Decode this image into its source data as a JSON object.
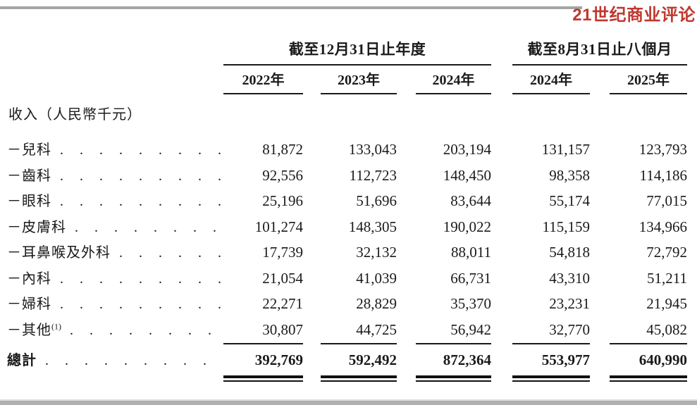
{
  "brand": {
    "logo_text": "21世纪商业评论",
    "logo_color": "#bf382f"
  },
  "table": {
    "columns": {
      "group1": {
        "title": "截至12月31日止年度",
        "years": [
          "2022年",
          "2023年",
          "2024年"
        ]
      },
      "group2": {
        "title": "截至8月31日止八個月",
        "years": [
          "2024年",
          "2025年"
        ]
      }
    },
    "section_header": "收入（人民幣千元）",
    "rows": [
      {
        "label": "－兒科",
        "leader": ". . . . . . . . . . . . . .",
        "values": [
          "81,872",
          "133,043",
          "203,194",
          "131,157",
          "123,793"
        ]
      },
      {
        "label": "－齒科",
        "leader": ". . . . . . . . . . . . . .",
        "values": [
          "92,556",
          "112,723",
          "148,450",
          "98,358",
          "114,186"
        ]
      },
      {
        "label": "－眼科",
        "leader": ". . . . . . . . . . . . . .",
        "values": [
          "25,196",
          "51,696",
          "83,644",
          "55,174",
          "77,015"
        ]
      },
      {
        "label": "－皮膚科",
        "leader": ". . . . . . . . . . . .",
        "values": [
          "101,274",
          "148,305",
          "190,022",
          "115,159",
          "134,966"
        ]
      },
      {
        "label": "－耳鼻喉及外科",
        "leader": ". . . . . . .",
        "values": [
          "17,739",
          "32,132",
          "88,011",
          "54,818",
          "72,792"
        ]
      },
      {
        "label": "－內科",
        "leader": ". . . . . . . . . . . . . .",
        "values": [
          "21,054",
          "41,039",
          "66,731",
          "43,310",
          "51,211"
        ]
      },
      {
        "label": "－婦科",
        "leader": ". . . . . . . . . . . . . .",
        "values": [
          "22,271",
          "28,829",
          "35,370",
          "23,231",
          "21,945"
        ]
      },
      {
        "label": "－其他",
        "sup": "(1)",
        "leader": ". . . . . . . . . . . .",
        "values": [
          "30,807",
          "44,725",
          "56,942",
          "32,770",
          "45,082"
        ]
      }
    ],
    "total": {
      "label": "總計",
      "leader": ". . . . . . . . . . . . . . .",
      "values": [
        "392,769",
        "592,492",
        "872,364",
        "553,977",
        "640,990"
      ]
    }
  }
}
